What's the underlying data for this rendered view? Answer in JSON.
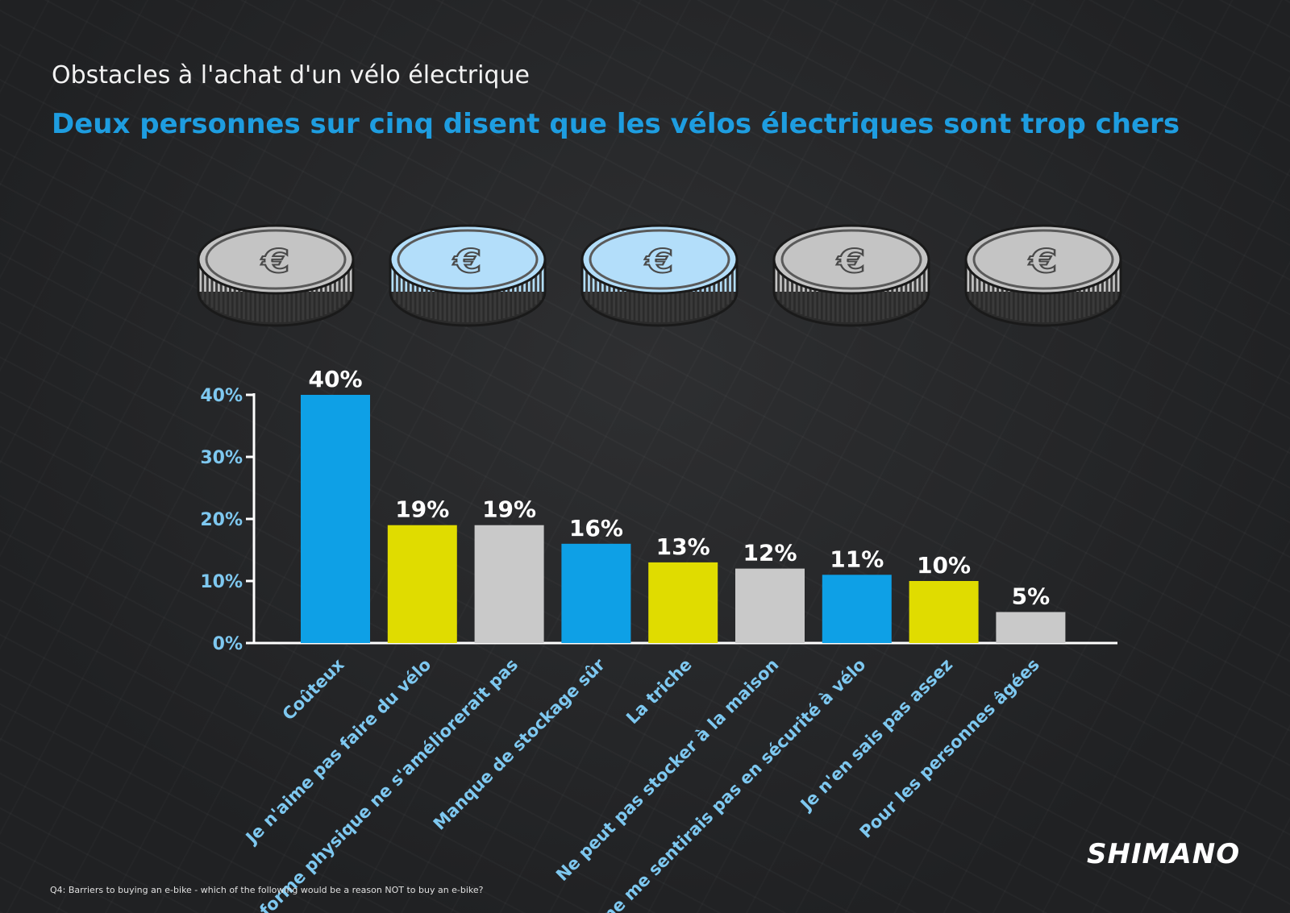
{
  "header": {
    "kicker": "Obstacles à l'achat d'un vélo électrique",
    "headline": "Deux personnes sur cinq disent que les vélos électriques sont trop chers"
  },
  "illustration": {
    "icon": "euro-coin-icon",
    "coins": [
      {
        "fill": "#c4c4c4",
        "glyph": "€"
      },
      {
        "fill": "#b3defa",
        "glyph": "€"
      },
      {
        "fill": "#b3defa",
        "glyph": "€"
      },
      {
        "fill": "#c4c4c4",
        "glyph": "€"
      },
      {
        "fill": "#c4c4c4",
        "glyph": "€"
      }
    ]
  },
  "chart_data": {
    "type": "bar",
    "categories": [
      "Coûteux",
      "Je n'aime pas faire du vélo",
      "La forme physique ne s'améliorerait pas",
      "Manque de stockage sûr",
      "La triche",
      "Ne peut pas stocker à la maison",
      "Je ne me sentirais pas en sécurité à vélo",
      "Je n'en sais pas assez",
      "Pour les personnes âgées"
    ],
    "values": [
      40,
      19,
      19,
      16,
      13,
      12,
      11,
      10,
      5
    ],
    "value_labels": [
      "40%",
      "19%",
      "19%",
      "16%",
      "13%",
      "12%",
      "11%",
      "10%",
      "5%"
    ],
    "bar_colors": [
      "#0ea0e6",
      "#e0dc00",
      "#c9c9c9",
      "#0ea0e6",
      "#e0dc00",
      "#c9c9c9",
      "#0ea0e6",
      "#e0dc00",
      "#c9c9c9"
    ],
    "ylim": [
      0,
      40
    ],
    "yticks": [
      0,
      10,
      20,
      30,
      40
    ],
    "ytick_labels": [
      "0%",
      "10%",
      "20%",
      "30%",
      "40%"
    ],
    "grid": false,
    "legend": "none",
    "colors": {
      "axis": "#ffffff",
      "tick_label": "#7ec8f0",
      "category_label": "#7ec8f0",
      "value_label": "#ffffff"
    }
  },
  "footer": {
    "note": "Q4: Barriers to buying an e-bike - which of the following would be a reason NOT to buy an e-bike?",
    "logo": "SHIMANO"
  }
}
